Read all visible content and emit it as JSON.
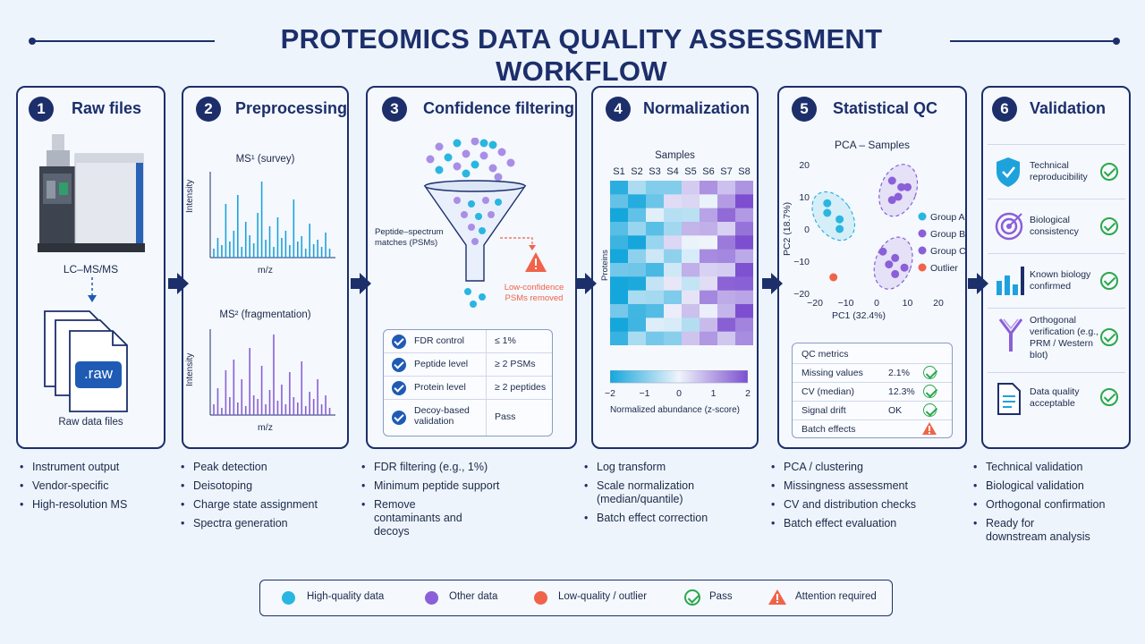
{
  "title": "PROTEOMICS DATA QUALITY ASSESSMENT WORKFLOW",
  "colors": {
    "navy": "#1c2f6b",
    "cyan": "#29b6e0",
    "purple": "#8a5fd8",
    "orange": "#f0634a",
    "green": "#2aa84a"
  },
  "panels": [
    {
      "num": "1",
      "title": "Raw files",
      "bullets": [
        "Instrument output",
        "Vendor-specific",
        "High-resolution MS"
      ]
    },
    {
      "num": "2",
      "title": "Preprocessing",
      "bullets": [
        "Peak detection",
        "Deisotoping",
        "Charge state assignment",
        "Spectra generation"
      ]
    },
    {
      "num": "3",
      "title": "Confidence filtering",
      "bullets": [
        "FDR filtering (e.g., 1%)",
        "Minimum peptide support",
        "Remove contaminants and decoys"
      ]
    },
    {
      "num": "4",
      "title": "Normalization",
      "bullets": [
        "Log transform",
        "Scale normalization (median/quantile)",
        "Batch effect correction"
      ]
    },
    {
      "num": "5",
      "title": "Statistical QC",
      "bullets": [
        "PCA / clustering",
        "Missingness assessment",
        "CV and distribution checks",
        "Batch effect evaluation"
      ]
    },
    {
      "num": "6",
      "title": "Validation",
      "bullets": [
        "Technical validation",
        "Biological validation",
        "Orthogonal confirmation",
        "Ready for downstream analysis"
      ]
    }
  ],
  "raw": {
    "instrument_label": "LC–MS/MS",
    "file_ext": ".raw",
    "files_label": "Raw data files"
  },
  "pre": {
    "ms1_title": "MS¹ (survey)",
    "ms2_title": "MS² (fragmentation)",
    "ylabel": "Intensity",
    "xlabel": "m/z"
  },
  "filter": {
    "psm_label_1": "Peptide–spectrum",
    "psm_label_2": "matches (PSMs)",
    "removed_1": "Low-confidence",
    "removed_2": "PSMs removed",
    "rows": [
      {
        "label": "FDR control",
        "value": "≤ 1%"
      },
      {
        "label": "Peptide level",
        "value": "≥ 2 PSMs"
      },
      {
        "label": "Protein level",
        "value": "≥ 2 peptides"
      },
      {
        "label": "Decoy-based validation",
        "value": "Pass"
      }
    ]
  },
  "norm": {
    "samples_label": "Samples",
    "samples": [
      "S1",
      "S2",
      "S3",
      "S4",
      "S5",
      "S6",
      "S7",
      "S8"
    ],
    "proteins_label": "Proteins",
    "scale_ticks": [
      "−2",
      "−1",
      "0",
      "1",
      "2"
    ],
    "scale_label": "Normalized abundance (z-score)"
  },
  "chart_data": {
    "type": "scatter",
    "title": "PCA – Samples",
    "xlabel": "PC1 (32.4%)",
    "ylabel": "PC2 (18.7%)",
    "xlim": [
      -20,
      20
    ],
    "ylim": [
      -20,
      20
    ],
    "xticks": [
      "−20",
      "−10",
      "0",
      "10",
      "20"
    ],
    "yticks": [
      "20",
      "10",
      "0",
      "−10",
      "−20"
    ],
    "series": [
      {
        "name": "Group A",
        "color": "#29b6e0",
        "points": [
          [
            -16,
            8
          ],
          [
            -16,
            5
          ],
          [
            -12,
            3
          ],
          [
            -12,
            0
          ]
        ]
      },
      {
        "name": "Group B",
        "color": "#8a5fd8",
        "points": [
          [
            5,
            15
          ],
          [
            8,
            13
          ],
          [
            10,
            13
          ],
          [
            7,
            10
          ],
          [
            5,
            9
          ]
        ]
      },
      {
        "name": "Group C",
        "color": "#8a5fd8",
        "points": [
          [
            2,
            -7
          ],
          [
            6,
            -9
          ],
          [
            4,
            -11
          ],
          [
            9,
            -12
          ],
          [
            6,
            -14
          ]
        ]
      },
      {
        "name": "Outlier",
        "color": "#f0634a",
        "points": [
          [
            -14,
            -15
          ]
        ]
      }
    ]
  },
  "qc": {
    "title": "QC metrics",
    "rows": [
      {
        "label": "Missing values",
        "value": "2.1%",
        "status": "pass"
      },
      {
        "label": "CV (median)",
        "value": "12.3%",
        "status": "pass"
      },
      {
        "label": "Signal drift",
        "value": "OK",
        "status": "pass"
      },
      {
        "label": "Batch effects",
        "value": "",
        "status": "attention"
      }
    ]
  },
  "validation": [
    {
      "label": "Technical reproducibility",
      "icon": "shield-check-icon"
    },
    {
      "label": "Biological consistency",
      "icon": "target-icon"
    },
    {
      "label": "Known biology confirmed",
      "icon": "bar-chart-icon"
    },
    {
      "label": "Orthogonal verification (e.g., PRM / Western blot)",
      "icon": "antibody-icon"
    },
    {
      "label": "Data quality acceptable",
      "icon": "document-icon"
    }
  ],
  "legend": [
    {
      "label": "High-quality data",
      "kind": "dot",
      "color": "#29b6e0"
    },
    {
      "label": "Other data",
      "kind": "dot",
      "color": "#8a5fd8"
    },
    {
      "label": "Low-quality / outlier",
      "kind": "dot",
      "color": "#f0634a"
    },
    {
      "label": "Pass",
      "kind": "check"
    },
    {
      "label": "Attention required",
      "kind": "warning"
    }
  ]
}
